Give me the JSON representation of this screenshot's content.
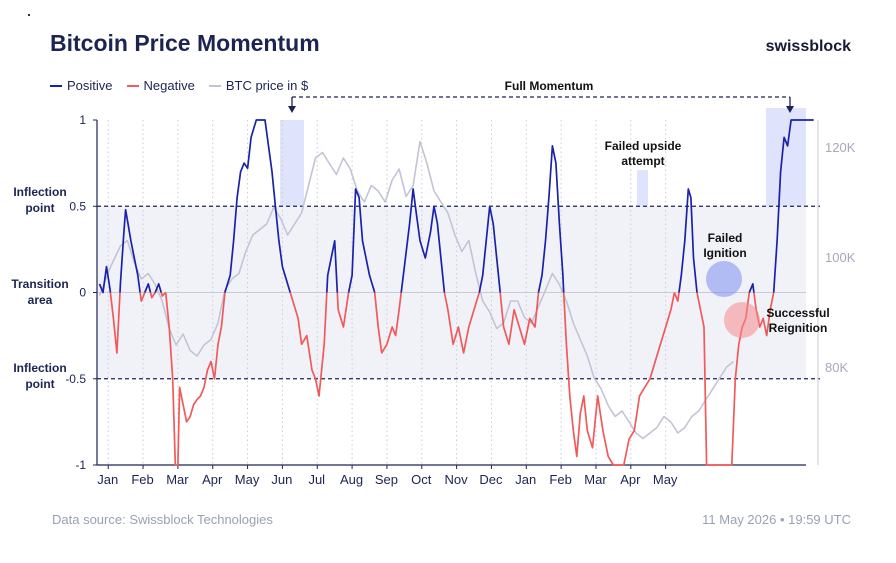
{
  "header": {
    "title": "Bitcoin Price Momentum",
    "brand": "swissblock"
  },
  "legend": {
    "items": [
      {
        "label": "Positive",
        "color": "#1a22a8"
      },
      {
        "label": "Negative",
        "color": "#f05a5a"
      },
      {
        "label": "BTC price in $",
        "color": "#c2c4d6"
      }
    ]
  },
  "footer": {
    "source": "Data source: Swissblock Technologies",
    "timestamp": "11 May 2026 • 19:59 UTC"
  },
  "chart_data": {
    "type": "line",
    "title": "Bitcoin Price Momentum",
    "x_ticks": [
      "Jan",
      "Feb",
      "Mar",
      "Apr",
      "May",
      "Jun",
      "Jul",
      "Aug",
      "Sep",
      "Oct",
      "Nov",
      "Dec",
      "Jan",
      "Feb",
      "Mar",
      "Apr",
      "May"
    ],
    "y_left": {
      "ticks": [
        1,
        0.5,
        0,
        -0.5,
        -1
      ],
      "tick_labels": [
        "1",
        "0.5",
        "0",
        "-0.5",
        "-1"
      ],
      "range": [
        -1,
        1
      ]
    },
    "y_right": {
      "ticks": [
        120000,
        100000,
        80000
      ],
      "tick_labels": [
        "120K",
        "100K",
        "80K"
      ],
      "range": [
        70000,
        126000
      ]
    },
    "left_labels": [
      {
        "text": "Inflection point",
        "y": 0.5
      },
      {
        "text": "Transition area",
        "y": 0
      },
      {
        "text": "Inflection point",
        "y": -0.5
      }
    ],
    "annotations": [
      {
        "text": "Full Momentum"
      },
      {
        "text": "Failed upside attempt"
      },
      {
        "text": "Failed Ignition"
      },
      {
        "text": "Successful Reignition"
      }
    ],
    "momentum": [
      [
        0,
        0.05
      ],
      [
        0.2,
        0.0
      ],
      [
        0.4,
        0.15
      ],
      [
        0.6,
        0.02
      ],
      [
        0.8,
        -0.15
      ],
      [
        1.0,
        -0.35
      ],
      [
        1.2,
        0.05
      ],
      [
        1.4,
        0.35
      ],
      [
        1.5,
        0.48
      ],
      [
        1.6,
        0.42
      ],
      [
        1.8,
        0.3
      ],
      [
        2.0,
        0.2
      ],
      [
        2.2,
        0.1
      ],
      [
        2.4,
        -0.05
      ],
      [
        2.6,
        0.0
      ],
      [
        2.8,
        0.05
      ],
      [
        3.0,
        -0.03
      ],
      [
        3.2,
        0.0
      ],
      [
        3.4,
        0.05
      ],
      [
        3.6,
        -0.02
      ],
      [
        3.8,
        0.0
      ],
      [
        4.0,
        -0.2
      ],
      [
        4.2,
        -0.5
      ],
      [
        4.35,
        -1.0
      ],
      [
        4.5,
        -1.0
      ],
      [
        4.6,
        -0.55
      ],
      [
        4.8,
        -0.65
      ],
      [
        5.0,
        -0.75
      ],
      [
        5.2,
        -0.72
      ],
      [
        5.4,
        -0.65
      ],
      [
        5.6,
        -0.62
      ],
      [
        5.8,
        -0.6
      ],
      [
        6.0,
        -0.55
      ],
      [
        6.2,
        -0.45
      ],
      [
        6.4,
        -0.4
      ],
      [
        6.6,
        -0.5
      ],
      [
        6.8,
        -0.3
      ],
      [
        7.0,
        -0.2
      ],
      [
        7.2,
        0.0
      ],
      [
        7.5,
        0.1
      ],
      [
        7.7,
        0.3
      ],
      [
        7.9,
        0.55
      ],
      [
        8.1,
        0.7
      ],
      [
        8.3,
        0.75
      ],
      [
        8.5,
        0.72
      ],
      [
        8.7,
        0.9
      ],
      [
        9.0,
        1.0
      ],
      [
        9.3,
        1.0
      ],
      [
        9.5,
        1.0
      ],
      [
        9.7,
        0.85
      ],
      [
        9.9,
        0.7
      ],
      [
        10.1,
        0.5
      ],
      [
        10.3,
        0.3
      ],
      [
        10.5,
        0.15
      ],
      [
        10.8,
        0.05
      ],
      [
        11.1,
        -0.05
      ],
      [
        11.4,
        -0.15
      ],
      [
        11.6,
        -0.3
      ],
      [
        11.9,
        -0.25
      ],
      [
        12.2,
        -0.45
      ],
      [
        12.4,
        -0.5
      ],
      [
        12.6,
        -0.6
      ],
      [
        12.9,
        -0.3
      ],
      [
        13.1,
        0.1
      ],
      [
        13.3,
        0.2
      ],
      [
        13.5,
        0.3
      ],
      [
        13.7,
        -0.1
      ],
      [
        14.0,
        -0.2
      ],
      [
        14.3,
        0.0
      ],
      [
        14.5,
        0.1
      ],
      [
        14.7,
        0.6
      ],
      [
        14.9,
        0.55
      ],
      [
        15.1,
        0.3
      ],
      [
        15.3,
        0.2
      ],
      [
        15.5,
        0.1
      ],
      [
        15.8,
        0.0
      ],
      [
        16.0,
        -0.2
      ],
      [
        16.2,
        -0.35
      ],
      [
        16.5,
        -0.3
      ],
      [
        16.8,
        -0.2
      ],
      [
        17.0,
        -0.25
      ],
      [
        17.2,
        -0.1
      ],
      [
        17.5,
        0.15
      ],
      [
        17.8,
        0.4
      ],
      [
        18.0,
        0.6
      ],
      [
        18.2,
        0.45
      ],
      [
        18.4,
        0.3
      ],
      [
        18.7,
        0.2
      ],
      [
        19.0,
        0.35
      ],
      [
        19.2,
        0.5
      ],
      [
        19.4,
        0.4
      ],
      [
        19.6,
        0.2
      ],
      [
        19.8,
        0.0
      ],
      [
        20.0,
        -0.1
      ],
      [
        20.3,
        -0.3
      ],
      [
        20.6,
        -0.2
      ],
      [
        20.9,
        -0.35
      ],
      [
        21.2,
        -0.2
      ],
      [
        21.5,
        -0.1
      ],
      [
        21.8,
        0.0
      ],
      [
        22.0,
        0.1
      ],
      [
        22.2,
        0.3
      ],
      [
        22.4,
        0.5
      ],
      [
        22.6,
        0.4
      ],
      [
        22.8,
        0.2
      ],
      [
        23.0,
        0.0
      ],
      [
        23.2,
        -0.2
      ],
      [
        23.5,
        -0.3
      ],
      [
        23.8,
        -0.1
      ],
      [
        24.1,
        -0.2
      ],
      [
        24.4,
        -0.3
      ],
      [
        24.7,
        -0.15
      ],
      [
        25.0,
        -0.2
      ],
      [
        25.2,
        0.0
      ],
      [
        25.4,
        0.1
      ],
      [
        25.6,
        0.3
      ],
      [
        25.8,
        0.55
      ],
      [
        26.0,
        0.85
      ],
      [
        26.2,
        0.75
      ],
      [
        26.4,
        0.4
      ],
      [
        26.6,
        0.1
      ],
      [
        26.8,
        -0.3
      ],
      [
        27.0,
        -0.6
      ],
      [
        27.2,
        -0.8
      ],
      [
        27.4,
        -0.95
      ],
      [
        27.6,
        -0.7
      ],
      [
        27.8,
        -0.6
      ],
      [
        28.0,
        -0.8
      ],
      [
        28.3,
        -0.9
      ],
      [
        28.6,
        -0.6
      ],
      [
        28.9,
        -0.8
      ],
      [
        29.2,
        -0.95
      ],
      [
        29.5,
        -1.0
      ],
      [
        29.8,
        -1.0
      ],
      [
        30.1,
        -1.0
      ],
      [
        30.4,
        -0.85
      ],
      [
        30.7,
        -0.8
      ],
      [
        31.0,
        -0.6
      ],
      [
        31.3,
        -0.55
      ],
      [
        31.6,
        -0.5
      ],
      [
        31.9,
        -0.4
      ],
      [
        32.2,
        -0.3
      ],
      [
        32.5,
        -0.2
      ],
      [
        32.8,
        -0.1
      ],
      [
        33.0,
        0.0
      ],
      [
        33.2,
        -0.05
      ],
      [
        33.4,
        0.1
      ],
      [
        33.6,
        0.3
      ],
      [
        33.8,
        0.6
      ],
      [
        33.95,
        0.55
      ],
      [
        34.1,
        0.2
      ],
      [
        34.3,
        0.0
      ],
      [
        34.5,
        -0.1
      ],
      [
        34.7,
        -0.2
      ],
      [
        34.85,
        -1.0
      ],
      [
        35.2,
        -1.0
      ],
      [
        35.6,
        -1.0
      ],
      [
        36.0,
        -1.0
      ],
      [
        36.3,
        -1.0
      ],
      [
        36.5,
        -0.5
      ],
      [
        36.7,
        -0.3
      ],
      [
        36.9,
        -0.2
      ],
      [
        37.1,
        -0.15
      ],
      [
        37.3,
        0.0
      ],
      [
        37.5,
        0.05
      ],
      [
        37.7,
        -0.1
      ],
      [
        37.9,
        -0.2
      ],
      [
        38.1,
        -0.15
      ],
      [
        38.3,
        -0.25
      ],
      [
        38.5,
        -0.1
      ],
      [
        38.7,
        0.0
      ],
      [
        38.9,
        0.3
      ],
      [
        39.1,
        0.7
      ],
      [
        39.3,
        0.9
      ],
      [
        39.5,
        0.85
      ],
      [
        39.7,
        1.0
      ],
      [
        40.0,
        1.0
      ],
      [
        40.5,
        1.0
      ],
      [
        41.0,
        1.0
      ]
    ],
    "btc_price": [
      [
        0,
        93000
      ],
      [
        0.6,
        98000
      ],
      [
        1.2,
        102000
      ],
      [
        1.6,
        103000
      ],
      [
        2.0,
        99000
      ],
      [
        2.4,
        96000
      ],
      [
        2.8,
        97000
      ],
      [
        3.2,
        95000
      ],
      [
        3.6,
        92000
      ],
      [
        4.0,
        87000
      ],
      [
        4.4,
        84000
      ],
      [
        4.8,
        86000
      ],
      [
        5.2,
        83000
      ],
      [
        5.6,
        82000
      ],
      [
        6.0,
        84000
      ],
      [
        6.4,
        85000
      ],
      [
        6.8,
        88000
      ],
      [
        7.2,
        94000
      ],
      [
        7.6,
        96000
      ],
      [
        8.0,
        97000
      ],
      [
        8.4,
        101000
      ],
      [
        8.8,
        104000
      ],
      [
        9.2,
        105000
      ],
      [
        9.6,
        106000
      ],
      [
        10.0,
        109000
      ],
      [
        10.4,
        107000
      ],
      [
        10.8,
        104000
      ],
      [
        11.2,
        106000
      ],
      [
        11.6,
        108000
      ],
      [
        12.0,
        113000
      ],
      [
        12.4,
        118000
      ],
      [
        12.8,
        119000
      ],
      [
        13.2,
        117000
      ],
      [
        13.6,
        115000
      ],
      [
        14.0,
        118000
      ],
      [
        14.4,
        116000
      ],
      [
        14.8,
        112000
      ],
      [
        15.2,
        110000
      ],
      [
        15.6,
        113000
      ],
      [
        16.0,
        112000
      ],
      [
        16.4,
        110000
      ],
      [
        16.8,
        114000
      ],
      [
        17.2,
        116000
      ],
      [
        17.6,
        111000
      ],
      [
        18.0,
        113000
      ],
      [
        18.4,
        121000
      ],
      [
        18.8,
        117000
      ],
      [
        19.2,
        112000
      ],
      [
        19.6,
        110000
      ],
      [
        20.0,
        108000
      ],
      [
        20.4,
        104000
      ],
      [
        20.8,
        101000
      ],
      [
        21.2,
        103000
      ],
      [
        21.6,
        97000
      ],
      [
        22.0,
        92000
      ],
      [
        22.4,
        90000
      ],
      [
        22.8,
        87000
      ],
      [
        23.2,
        88000
      ],
      [
        23.6,
        92000
      ],
      [
        24.0,
        92000
      ],
      [
        24.4,
        89000
      ],
      [
        24.8,
        88000
      ],
      [
        25.2,
        91000
      ],
      [
        25.6,
        94000
      ],
      [
        26.0,
        97000
      ],
      [
        26.4,
        95000
      ],
      [
        26.8,
        92000
      ],
      [
        27.2,
        88000
      ],
      [
        27.6,
        85000
      ],
      [
        28.0,
        82000
      ],
      [
        28.4,
        78000
      ],
      [
        28.8,
        76000
      ],
      [
        29.2,
        73000
      ],
      [
        29.6,
        71000
      ],
      [
        30.0,
        72000
      ],
      [
        30.4,
        70000
      ],
      [
        30.8,
        68000
      ],
      [
        31.2,
        67000
      ],
      [
        31.6,
        68000
      ],
      [
        32.0,
        69000
      ],
      [
        32.4,
        71000
      ],
      [
        32.8,
        70000
      ],
      [
        33.2,
        68000
      ],
      [
        33.6,
        69000
      ],
      [
        34.0,
        71000
      ],
      [
        34.4,
        72000
      ],
      [
        34.8,
        74000
      ],
      [
        35.2,
        76000
      ],
      [
        35.6,
        78000
      ],
      [
        36.0,
        80000
      ],
      [
        36.4,
        81000
      ]
    ]
  }
}
